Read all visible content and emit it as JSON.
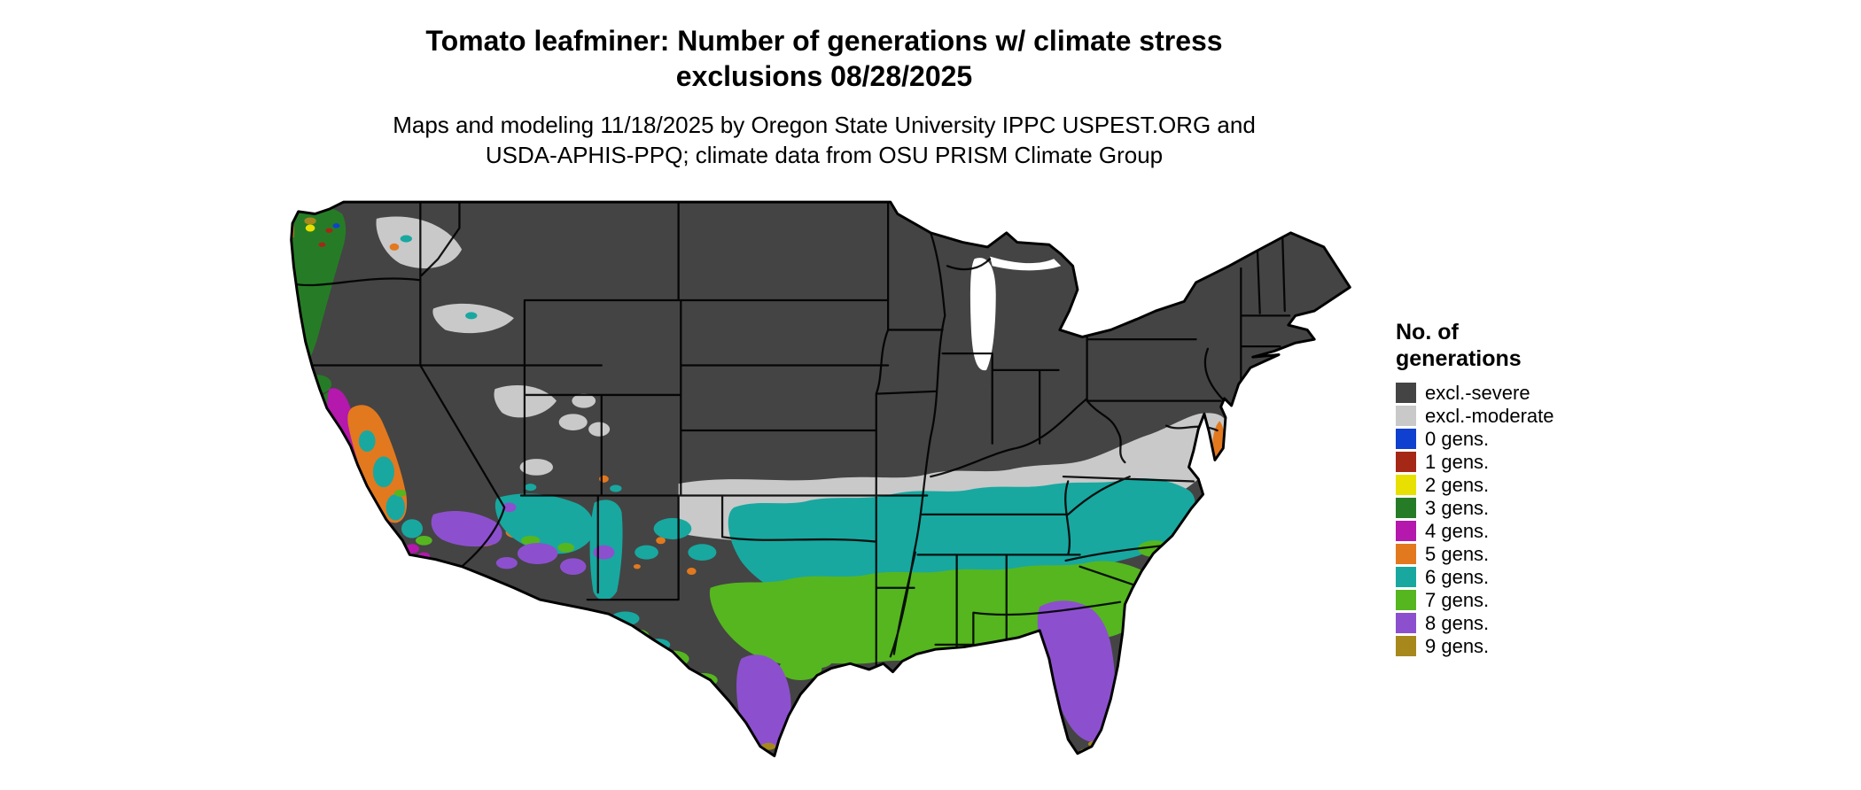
{
  "title_line1": "Tomato leafminer: Number of generations w/ climate stress",
  "title_line2": "exclusions 08/28/2025",
  "subtitle_line1": "Maps and modeling 11/18/2025 by Oregon State University IPPC USPEST.ORG and",
  "subtitle_line2": "USDA-APHIS-PPQ; climate data from OSU PRISM Climate Group",
  "legend": {
    "title_line1": "No. of",
    "title_line2": "generations",
    "items": [
      {
        "key": "excl_severe",
        "label": "excl.-severe",
        "color": "#444444"
      },
      {
        "key": "excl_moderate",
        "label": "excl.-moderate",
        "color": "#c9c9c9"
      },
      {
        "key": "gens0",
        "label": "0 gens.",
        "color": "#1040d0"
      },
      {
        "key": "gens1",
        "label": "1 gens.",
        "color": "#a52816"
      },
      {
        "key": "gens2",
        "label": "2 gens.",
        "color": "#e8e000"
      },
      {
        "key": "gens3",
        "label": "3 gens.",
        "color": "#267c26"
      },
      {
        "key": "gens4",
        "label": "4 gens.",
        "color": "#b418ac"
      },
      {
        "key": "gens5",
        "label": "5 gens.",
        "color": "#e2791e"
      },
      {
        "key": "gens6",
        "label": "6 gens.",
        "color": "#18a8a0"
      },
      {
        "key": "gens7",
        "label": "7 gens.",
        "color": "#55b620"
      },
      {
        "key": "gens8",
        "label": "8 gens.",
        "color": "#8c50ce"
      },
      {
        "key": "gens9",
        "label": "9 gens.",
        "color": "#a6881d"
      }
    ]
  },
  "map_background": "#ffffff",
  "map_border_color": "#000000"
}
